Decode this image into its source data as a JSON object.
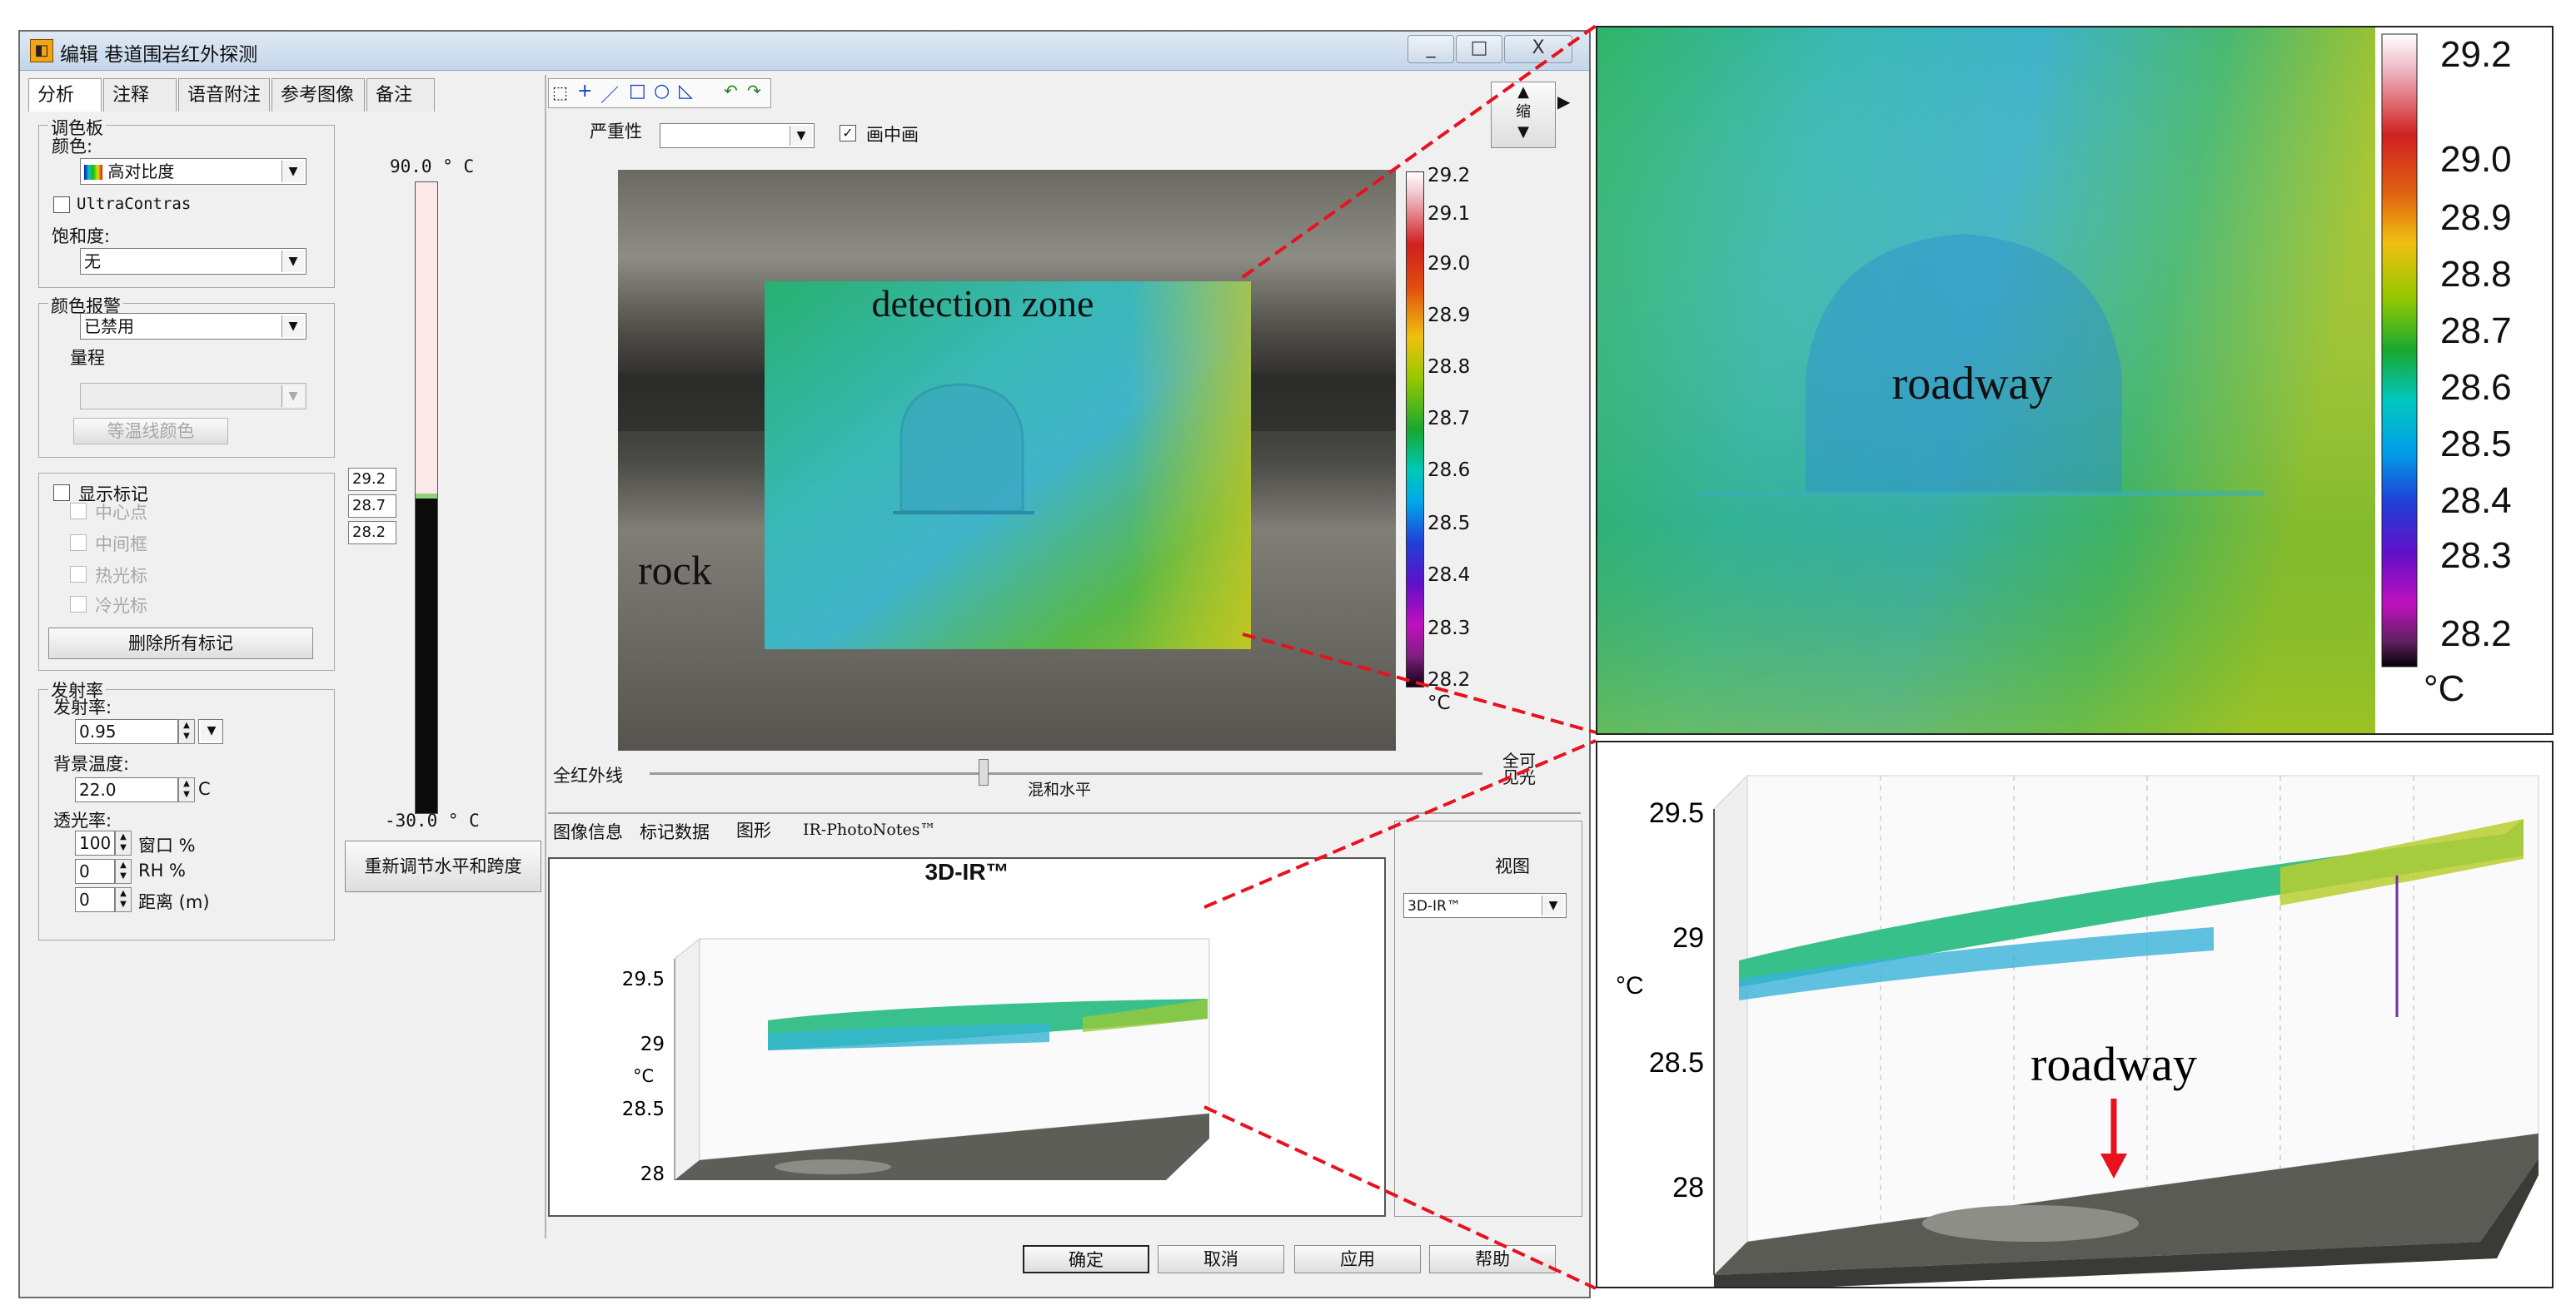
{
  "window": {
    "title": "编辑 巷道围岩红外探测",
    "buttons": {
      "minimize": "_",
      "maximize": "□",
      "close": "X"
    }
  },
  "left_tabs": [
    "分析",
    "注释",
    "语音附注",
    "参考图像",
    "备注"
  ],
  "palette": {
    "group_title": "调色板",
    "color_label": "颜色:",
    "color_value": "高对比度",
    "ultracontrast_label": "UltraContras",
    "saturation_label": "饱和度:",
    "saturation_value": "无"
  },
  "color_alarm": {
    "group_title": "颜色报警",
    "value": "已禁用",
    "range_label": "量程",
    "button_label": "等温线颜色"
  },
  "markers": {
    "show_label": "显示标记",
    "center_label": "中心点",
    "mid_box_label": "中间框",
    "hot_label": "热光标",
    "cold_label": "冷光标",
    "delete_all_label": "删除所有标记"
  },
  "emissivity": {
    "group_title": "发射率",
    "emissivity_label": "发射率:",
    "emissivity_value": "0.95",
    "bg_temp_label": "背景温度:",
    "bg_temp_value": "22.0",
    "bg_temp_unit": "C",
    "transmission_label": "透光率:",
    "window_value": "100",
    "window_label": "窗口 %",
    "rh_value": "0",
    "rh_label": "RH %",
    "distance_value": "0",
    "distance_label": "距离 (m)"
  },
  "level_span": {
    "top_label": "90.0 ° C",
    "bottom_label": "-30.0 ° C",
    "value_high": "29.2",
    "value_mid": "28.7",
    "value_low": "28.2",
    "readjust_button": "重新调节水平和跨度"
  },
  "toolbar": {
    "tools": [
      "cursor-tool",
      "point-tool",
      "line-tool",
      "rect-tool",
      "ellipse-tool",
      "polygon-tool"
    ],
    "severity_label": "严重性",
    "pip_checkbox_label": "画中画",
    "zoom_label": "缩"
  },
  "thermal": {
    "annotations": {
      "detection": "detection zone",
      "rock": "rock"
    },
    "colorbar_ticks": [
      "29.2",
      "29.1",
      "29.0",
      "28.9",
      "28.8",
      "28.7",
      "28.6",
      "28.5",
      "28.4",
      "28.3",
      "28.2"
    ],
    "unit": "°C",
    "blend_left": "全红外线",
    "blend_center": "混和水平",
    "blend_right": "全可见光",
    "blend_value": 0.4
  },
  "bottom_tabs": [
    "图像信息",
    "标记数据",
    "图形",
    "IR-PhotoNotes™"
  ],
  "plot_small": {
    "title": "3D-IR™",
    "yticks": [
      "29.5",
      "29",
      "28.5",
      "28"
    ],
    "ylabel": "°C",
    "view_label": "视图",
    "view_value": "3D-IR™"
  },
  "dialog_buttons": {
    "ok": "确定",
    "cancel": "取消",
    "apply": "应用",
    "help": "帮助"
  },
  "zoom_panel": {
    "label": "roadway",
    "ticks": [
      "29.2",
      "29.0",
      "28.9",
      "28.8",
      "28.7",
      "28.6",
      "28.5",
      "28.4",
      "28.3",
      "28.2"
    ],
    "unit": "°C"
  },
  "zoom_3d": {
    "yticks": [
      "29.5",
      "29",
      "28.5",
      "28"
    ],
    "ylabel": "°C",
    "label": "roadway"
  },
  "colors": {
    "accent_red": "#e8121f",
    "window_bg": "#f0f0f0"
  }
}
